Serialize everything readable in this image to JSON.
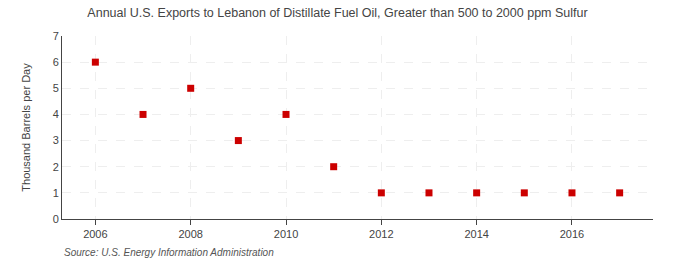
{
  "chart_data": {
    "type": "scatter",
    "title": "Annual U.S. Exports to Lebanon of Distillate Fuel Oil, Greater than 500 to 2000 ppm Sulfur",
    "y_label": "Thousand Barrels per Day",
    "annotations": [
      "Source: U.S. Energy Information Administration"
    ],
    "x": [
      2006,
      2007,
      2008,
      2009,
      2010,
      2011,
      2012,
      2013,
      2014,
      2015,
      2016,
      2017
    ],
    "values": [
      6,
      4,
      5,
      3,
      4,
      2,
      1,
      1,
      1,
      1,
      1,
      1
    ],
    "color": "#cc0000",
    "marker": "square",
    "xlim": [
      2005.3,
      2017.7
    ],
    "ylim": [
      0,
      7
    ],
    "xticks": [
      2006,
      2008,
      2010,
      2012,
      2014,
      2016
    ],
    "yticks": [
      0,
      1,
      2,
      3,
      4,
      5,
      6,
      7
    ],
    "grid": true
  }
}
